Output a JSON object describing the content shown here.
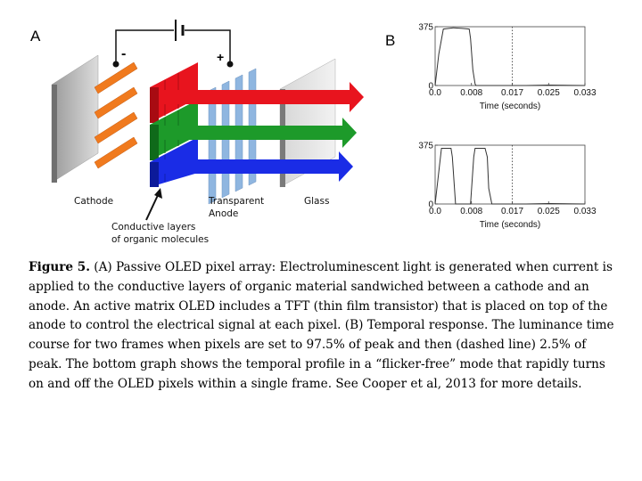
{
  "panel_a": {
    "letter": "A",
    "labels": {
      "minus": "-",
      "plus": "+",
      "cathode": "Cathode",
      "anode_line1": "Transparent",
      "anode_line2": "Anode",
      "glass": "Glass",
      "organic_line1": "Conductive layers",
      "organic_line2": "of organic molecules"
    },
    "colors": {
      "cathode": "#f07a1e",
      "red": "#e8141e",
      "green": "#1d9a2a",
      "blue": "#1a2ce6",
      "anode": "#8fb6e0"
    }
  },
  "panel_b": {
    "letter": "B",
    "xlabel": "Time (seconds)",
    "y_ticks": [
      "0",
      "375"
    ],
    "x_ticks": [
      "0.0",
      "0.008",
      "0.017",
      "0.025",
      "0.033"
    ],
    "dashed_line_at": 0.017
  },
  "chart_data": [
    {
      "type": "line",
      "title": "",
      "xlabel": "Time (seconds)",
      "ylabel": "",
      "xlim": [
        0,
        0.033
      ],
      "ylim": [
        0,
        375
      ],
      "x_ticks": [
        0,
        0.008,
        0.017,
        0.025,
        0.033
      ],
      "y_ticks": [
        0,
        375
      ],
      "series": [
        {
          "x": [
            0,
            0.0008,
            0.0018,
            0.004,
            0.006,
            0.0075,
            0.0078,
            0.0083,
            0.0088,
            0.009,
            0.017,
            0.02,
            0.025,
            0.033
          ],
          "y": [
            0,
            200,
            360,
            368,
            364,
            360,
            300,
            100,
            10,
            0,
            0,
            0,
            3,
            0
          ]
        }
      ]
    },
    {
      "type": "line",
      "title": "",
      "xlabel": "Time (seconds)",
      "ylabel": "",
      "xlim": [
        0,
        0.033
      ],
      "ylim": [
        0,
        375
      ],
      "x_ticks": [
        0,
        0.008,
        0.017,
        0.025,
        0.033
      ],
      "y_ticks": [
        0,
        375
      ],
      "series": [
        {
          "x": [
            0,
            0.0007,
            0.0014,
            0.0035,
            0.0038,
            0.0045,
            0.0078,
            0.0085,
            0.0088,
            0.011,
            0.0115,
            0.0118,
            0.0125,
            0.017,
            0.02,
            0.025,
            0.033
          ],
          "y": [
            0,
            180,
            355,
            355,
            300,
            0,
            0,
            300,
            355,
            355,
            300,
            100,
            0,
            0,
            0,
            3,
            0
          ]
        }
      ]
    }
  ],
  "caption": {
    "figure_label": "Figure 5.",
    "text": " (A) Passive OLED pixel array:  Electroluminescent light is generated when current is applied to the conductive layers of organic material sandwiched between a cathode and an anode. An active matrix OLED includes a TFT (thin film transistor) that is  placed on top of the anode to control the electrical signal at each pixel. (B) Temporal response. The luminance time course for two frames when pixels are set to 97.5% of peak and then (dashed line) 2.5% of peak.  The bottom graph shows the temporal profile in a “flicker-free” mode that rapidly turns on and off the OLED pixels within a single frame.  See Cooper et al, 2013 for more details."
  }
}
